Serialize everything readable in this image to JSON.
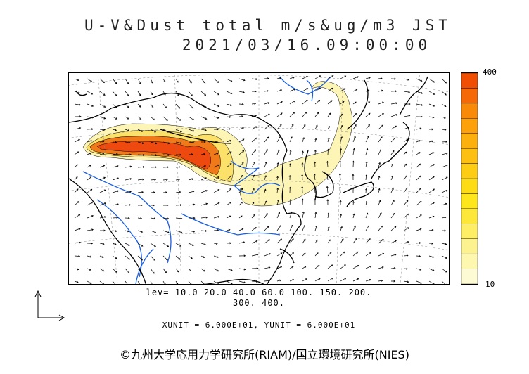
{
  "title_line1": "U-V&Dust total m/s&ug/m3 JST",
  "title_line2": "2021/03/16.09:00:00",
  "colorbar": {
    "max_label": "400",
    "min_label": "10",
    "colors": [
      "#fdfbd3",
      "#fdf7b0",
      "#fdf290",
      "#fdee66",
      "#fde83a",
      "#fde619",
      "#fddc16",
      "#fdcd13",
      "#fdbf10",
      "#fcb00d",
      "#fca10a",
      "#f98a08",
      "#f56a06",
      "#f04e03"
    ]
  },
  "levels_line1": "lev= 10.0 20.0 40.0 60.0 100. 150. 200.",
  "levels_line2": "300. 400.",
  "units_line": "XUNIT = 6.000E+01, YUNIT = 6.000E+01",
  "copyright": "©九州大学応用力学研究所(RIAM)/国立環境研究所(NIES)",
  "colors": {
    "coast": "#000000",
    "river": "#1a5fe0",
    "dust_low": "#fdf5b5",
    "dust_mid": "#fbe06a",
    "dust_high": "#f07a1a",
    "dust_peak": "#ee4a10"
  }
}
